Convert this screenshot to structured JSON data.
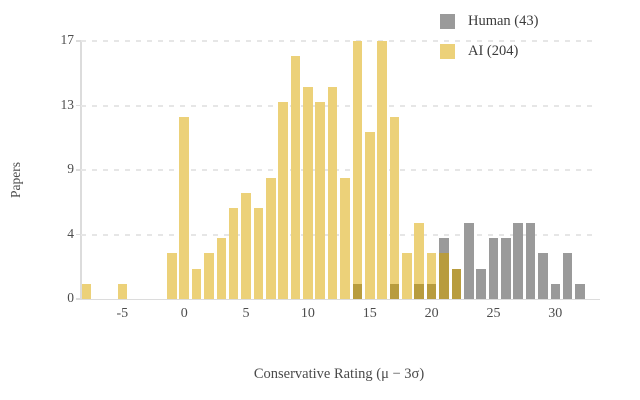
{
  "legend": {
    "items": [
      {
        "label": "Human (43)",
        "color": "#9a9a9a"
      },
      {
        "label": "AI (204)",
        "color": "#ecd179"
      }
    ]
  },
  "axes": {
    "y_label": "Papers",
    "x_label": "Conservative Rating (μ − 3σ)"
  },
  "chart_data": {
    "type": "bar",
    "subtype": "overlapping-histogram",
    "title": "",
    "xlabel": "Conservative Rating (μ − 3σ)",
    "ylabel": "Papers",
    "xlim": [
      -8.5,
      33.5
    ],
    "ylim": [
      0,
      17
    ],
    "bin_width": 1,
    "grid": "dashed-horizontal",
    "legend_position": "top-right",
    "y_ticks": [
      {
        "label": "0",
        "value": 0
      },
      {
        "label": "4",
        "value": 4.25
      },
      {
        "label": "9",
        "value": 8.5
      },
      {
        "label": "13",
        "value": 12.75
      },
      {
        "label": "17",
        "value": 17
      }
    ],
    "x_ticks": [
      {
        "label": "-5",
        "value": -5
      },
      {
        "label": "0",
        "value": 0
      },
      {
        "label": "5",
        "value": 5
      },
      {
        "label": "10",
        "value": 10
      },
      {
        "label": "15",
        "value": 15
      },
      {
        "label": "20",
        "value": 20
      },
      {
        "label": "25",
        "value": 25
      },
      {
        "label": "30",
        "value": 30
      }
    ],
    "series": [
      {
        "name": "AI (204)",
        "total": 204,
        "color": "#ecd179"
      },
      {
        "name": "Human (43)",
        "total": 43,
        "color": "#9a9a9a"
      }
    ],
    "overlap_color": "#b89c3e",
    "bars": [
      {
        "x": -8,
        "ai": 1,
        "human": 0
      },
      {
        "x": -5,
        "ai": 1,
        "human": 0
      },
      {
        "x": -1,
        "ai": 3,
        "human": 0
      },
      {
        "x": 0,
        "ai": 12,
        "human": 0
      },
      {
        "x": 1,
        "ai": 2,
        "human": 0
      },
      {
        "x": 2,
        "ai": 3,
        "human": 0
      },
      {
        "x": 3,
        "ai": 4,
        "human": 0
      },
      {
        "x": 4,
        "ai": 6,
        "human": 0
      },
      {
        "x": 5,
        "ai": 7,
        "human": 0
      },
      {
        "x": 6,
        "ai": 6,
        "human": 0
      },
      {
        "x": 7,
        "ai": 8,
        "human": 0
      },
      {
        "x": 8,
        "ai": 13,
        "human": 0
      },
      {
        "x": 9,
        "ai": 16,
        "human": 0
      },
      {
        "x": 10,
        "ai": 14,
        "human": 0
      },
      {
        "x": 11,
        "ai": 13,
        "human": 0
      },
      {
        "x": 12,
        "ai": 14,
        "human": 0
      },
      {
        "x": 13,
        "ai": 8,
        "human": 0
      },
      {
        "x": 14,
        "ai": 17,
        "human": 1
      },
      {
        "x": 15,
        "ai": 11,
        "human": 0
      },
      {
        "x": 16,
        "ai": 17,
        "human": 0
      },
      {
        "x": 17,
        "ai": 12,
        "human": 1
      },
      {
        "x": 18,
        "ai": 3,
        "human": 0
      },
      {
        "x": 19,
        "ai": 5,
        "human": 1
      },
      {
        "x": 20,
        "ai": 3,
        "human": 1
      },
      {
        "x": 21,
        "ai": 3,
        "human": 4
      },
      {
        "x": 22,
        "ai": 2,
        "human": 2
      },
      {
        "x": 23,
        "ai": 0,
        "human": 5
      },
      {
        "x": 24,
        "ai": 0,
        "human": 2
      },
      {
        "x": 25,
        "ai": 0,
        "human": 4
      },
      {
        "x": 26,
        "ai": 0,
        "human": 4
      },
      {
        "x": 27,
        "ai": 0,
        "human": 5
      },
      {
        "x": 28,
        "ai": 0,
        "human": 5
      },
      {
        "x": 29,
        "ai": 0,
        "human": 3
      },
      {
        "x": 30,
        "ai": 0,
        "human": 1
      },
      {
        "x": 31,
        "ai": 0,
        "human": 3
      },
      {
        "x": 32,
        "ai": 0,
        "human": 1
      }
    ]
  }
}
